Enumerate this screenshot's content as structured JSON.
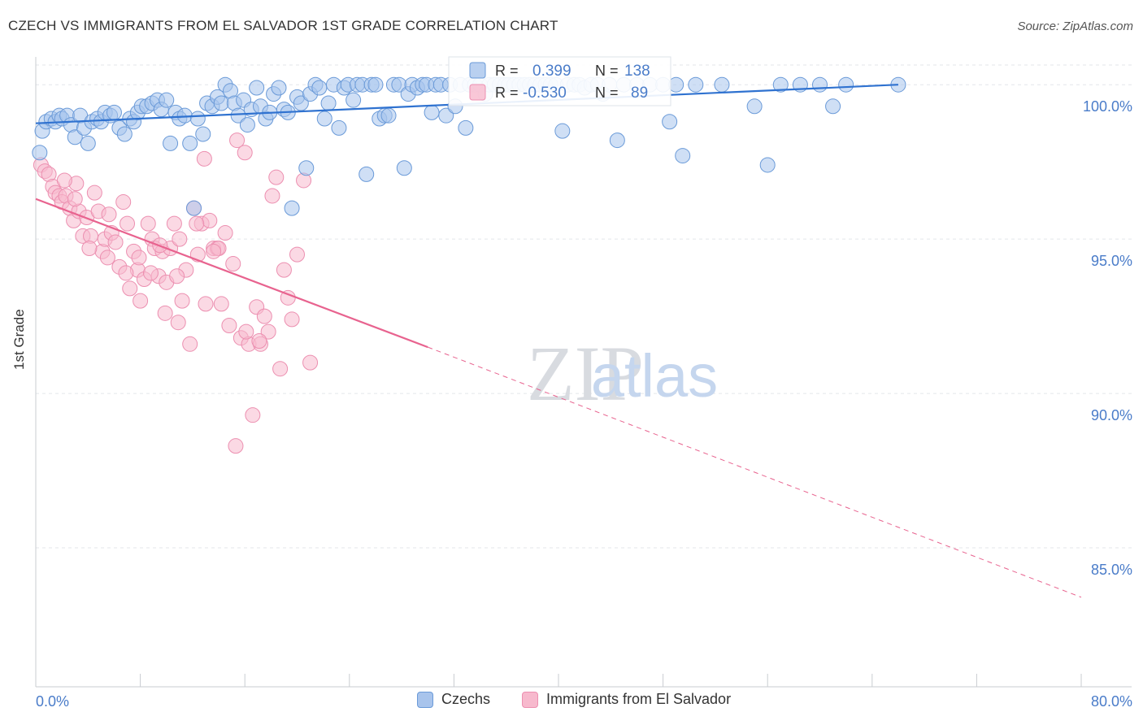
{
  "title": "CZECH VS IMMIGRANTS FROM EL SALVADOR 1ST GRADE CORRELATION CHART",
  "source": "Source: ZipAtlas.com",
  "watermark": {
    "zip": "ZIP",
    "atlas": "atlas"
  },
  "colors": {
    "czech_fill": "#a8c4ec",
    "czech_stroke": "#6a9ad8",
    "czech_line": "#2f72d0",
    "salv_fill": "#f7b9cd",
    "salv_stroke": "#ec8fb0",
    "salv_line": "#e8638f",
    "axis_label": "#4a7cc9"
  },
  "legend_box": {
    "rows": [
      {
        "r_label": "R =",
        "r_value": "0.399",
        "n_label": "N =",
        "n_value": "138"
      },
      {
        "r_label": "R =",
        "r_value": "-0.530",
        "n_label": "N =",
        "n_value": "89"
      }
    ]
  },
  "legend_bottom": {
    "items": [
      "Czechs",
      "Immigrants from El Salvador"
    ]
  },
  "chart_data": {
    "type": "scatter",
    "title": "CZECH VS IMMIGRANTS FROM EL SALVADOR 1ST GRADE CORRELATION CHART",
    "ylabel": "1st Grade",
    "xlim": [
      0,
      80
    ],
    "ylim": [
      80.5,
      100.9
    ],
    "x_tick_labels": [
      "0.0%",
      "80.0%"
    ],
    "y_ticks": [
      85,
      90,
      95,
      100
    ],
    "y_tick_labels": [
      "85.0%",
      "90.0%",
      "95.0%",
      "100.0%"
    ],
    "grid": true,
    "legend_position": "top-center",
    "series": [
      {
        "name": "Czechs",
        "stats": {
          "R": 0.399,
          "N": 138
        },
        "trend": {
          "x0": 0,
          "y0": 98.75,
          "x1": 66,
          "y1": 100.0,
          "dashed_to": null
        },
        "points": [
          [
            0.3,
            97.8
          ],
          [
            0.5,
            98.5
          ],
          [
            0.8,
            98.8
          ],
          [
            1.2,
            98.9
          ],
          [
            1.5,
            98.8
          ],
          [
            1.8,
            99.0
          ],
          [
            2.0,
            98.9
          ],
          [
            2.4,
            99.0
          ],
          [
            2.7,
            98.7
          ],
          [
            3.0,
            98.3
          ],
          [
            3.4,
            99.0
          ],
          [
            3.7,
            98.6
          ],
          [
            4.0,
            98.1
          ],
          [
            4.3,
            98.8
          ],
          [
            4.7,
            98.9
          ],
          [
            5.0,
            98.8
          ],
          [
            5.3,
            99.1
          ],
          [
            5.7,
            99.0
          ],
          [
            6.0,
            99.1
          ],
          [
            6.4,
            98.6
          ],
          [
            6.8,
            98.4
          ],
          [
            7.2,
            98.9
          ],
          [
            7.5,
            98.8
          ],
          [
            7.8,
            99.1
          ],
          [
            8.1,
            99.3
          ],
          [
            8.5,
            99.3
          ],
          [
            8.9,
            99.4
          ],
          [
            9.3,
            99.5
          ],
          [
            9.6,
            99.2
          ],
          [
            10.0,
            99.5
          ],
          [
            10.3,
            98.1
          ],
          [
            10.7,
            99.1
          ],
          [
            11.0,
            98.9
          ],
          [
            11.4,
            99.0
          ],
          [
            11.8,
            98.1
          ],
          [
            12.1,
            96.0
          ],
          [
            12.4,
            98.9
          ],
          [
            12.8,
            98.4
          ],
          [
            13.1,
            99.4
          ],
          [
            13.5,
            99.3
          ],
          [
            13.9,
            99.6
          ],
          [
            14.2,
            99.4
          ],
          [
            14.5,
            100.0
          ],
          [
            14.9,
            99.8
          ],
          [
            15.2,
            99.4
          ],
          [
            15.5,
            99.0
          ],
          [
            15.9,
            99.5
          ],
          [
            16.2,
            98.7
          ],
          [
            16.5,
            99.2
          ],
          [
            16.9,
            99.9
          ],
          [
            17.2,
            99.3
          ],
          [
            17.6,
            98.9
          ],
          [
            17.9,
            99.1
          ],
          [
            18.2,
            99.7
          ],
          [
            18.6,
            99.9
          ],
          [
            19.0,
            99.2
          ],
          [
            19.3,
            99.1
          ],
          [
            19.6,
            96.0
          ],
          [
            20.0,
            99.6
          ],
          [
            20.3,
            99.4
          ],
          [
            20.7,
            97.3
          ],
          [
            21.0,
            99.7
          ],
          [
            21.4,
            100.0
          ],
          [
            21.7,
            99.9
          ],
          [
            22.1,
            98.9
          ],
          [
            22.4,
            99.4
          ],
          [
            22.8,
            100.0
          ],
          [
            23.2,
            98.6
          ],
          [
            23.6,
            99.9
          ],
          [
            23.9,
            100.0
          ],
          [
            24.3,
            99.5
          ],
          [
            24.6,
            100.0
          ],
          [
            25.0,
            100.0
          ],
          [
            25.3,
            97.1
          ],
          [
            25.7,
            100.0
          ],
          [
            26.0,
            100.0
          ],
          [
            26.3,
            98.9
          ],
          [
            26.7,
            99.0
          ],
          [
            27.0,
            99.0
          ],
          [
            27.4,
            100.0
          ],
          [
            27.8,
            100.0
          ],
          [
            28.2,
            97.3
          ],
          [
            28.5,
            99.7
          ],
          [
            28.8,
            100.0
          ],
          [
            29.2,
            99.9
          ],
          [
            29.6,
            100.0
          ],
          [
            29.9,
            100.0
          ],
          [
            30.3,
            99.1
          ],
          [
            30.6,
            100.0
          ],
          [
            31.0,
            100.0
          ],
          [
            31.4,
            99.0
          ],
          [
            31.7,
            100.0
          ],
          [
            32.1,
            99.3
          ],
          [
            32.5,
            100.0
          ],
          [
            32.9,
            98.6
          ],
          [
            33.2,
            100.0
          ],
          [
            33.6,
            100.0
          ],
          [
            34.0,
            100.0
          ],
          [
            34.4,
            99.7
          ],
          [
            34.7,
            100.0
          ],
          [
            35.1,
            100.0
          ],
          [
            35.5,
            100.0
          ],
          [
            35.9,
            100.0
          ],
          [
            36.2,
            100.0
          ],
          [
            36.6,
            100.0
          ],
          [
            37.0,
            100.0
          ],
          [
            37.4,
            100.0
          ],
          [
            37.8,
            100.0
          ],
          [
            38.2,
            100.0
          ],
          [
            38.6,
            100.0
          ],
          [
            39.0,
            100.0
          ],
          [
            39.4,
            100.0
          ],
          [
            39.8,
            100.0
          ],
          [
            40.3,
            98.5
          ],
          [
            40.7,
            100.0
          ],
          [
            41.2,
            100.0
          ],
          [
            41.6,
            100.0
          ],
          [
            42.0,
            99.9
          ],
          [
            42.5,
            100.0
          ],
          [
            43.0,
            100.0
          ],
          [
            43.4,
            99.7
          ],
          [
            43.9,
            100.0
          ],
          [
            44.5,
            98.2
          ],
          [
            45.0,
            100.0
          ],
          [
            46.0,
            100.0
          ],
          [
            47.0,
            100.0
          ],
          [
            48.0,
            100.0
          ],
          [
            48.5,
            98.8
          ],
          [
            49.0,
            100.0
          ],
          [
            49.5,
            97.7
          ],
          [
            50.5,
            100.0
          ],
          [
            52.5,
            100.0
          ],
          [
            55.0,
            99.3
          ],
          [
            56.0,
            97.4
          ],
          [
            57.0,
            100.0
          ],
          [
            58.5,
            100.0
          ],
          [
            60.0,
            100.0
          ],
          [
            61.0,
            99.3
          ],
          [
            62.0,
            100.0
          ],
          [
            66.0,
            100.0
          ]
        ]
      },
      {
        "name": "Immigrants from El Salvador",
        "stats": {
          "R": -0.53,
          "N": 89
        },
        "trend": {
          "x0": 0,
          "y0": 96.3,
          "x1": 30,
          "y1": 91.5,
          "dashed_to": [
            80,
            83.4
          ]
        },
        "points": [
          [
            0.4,
            97.4
          ],
          [
            0.7,
            97.2
          ],
          [
            1.0,
            97.1
          ],
          [
            1.3,
            96.7
          ],
          [
            1.5,
            96.5
          ],
          [
            1.8,
            96.4
          ],
          [
            2.0,
            96.2
          ],
          [
            2.3,
            96.4
          ],
          [
            2.6,
            96.0
          ],
          [
            2.9,
            95.6
          ],
          [
            3.1,
            96.8
          ],
          [
            3.3,
            95.9
          ],
          [
            3.6,
            95.1
          ],
          [
            3.9,
            95.7
          ],
          [
            4.2,
            95.1
          ],
          [
            4.5,
            96.5
          ],
          [
            4.8,
            95.9
          ],
          [
            5.1,
            94.6
          ],
          [
            5.3,
            95.0
          ],
          [
            5.5,
            94.4
          ],
          [
            5.8,
            95.2
          ],
          [
            6.1,
            94.9
          ],
          [
            6.4,
            94.1
          ],
          [
            6.7,
            96.2
          ],
          [
            7.0,
            95.5
          ],
          [
            7.2,
            93.4
          ],
          [
            7.5,
            94.6
          ],
          [
            7.8,
            94.0
          ],
          [
            8.0,
            93.0
          ],
          [
            8.3,
            93.7
          ],
          [
            8.6,
            95.5
          ],
          [
            8.9,
            95.0
          ],
          [
            9.1,
            94.7
          ],
          [
            9.4,
            93.8
          ],
          [
            9.7,
            94.6
          ],
          [
            10.0,
            93.6
          ],
          [
            10.3,
            94.7
          ],
          [
            10.6,
            95.5
          ],
          [
            10.9,
            92.3
          ],
          [
            11.2,
            93.0
          ],
          [
            11.5,
            94.0
          ],
          [
            11.8,
            91.6
          ],
          [
            12.1,
            96.0
          ],
          [
            12.4,
            94.5
          ],
          [
            12.7,
            95.5
          ],
          [
            13.0,
            92.9
          ],
          [
            13.3,
            95.6
          ],
          [
            13.6,
            94.7
          ],
          [
            13.9,
            94.7
          ],
          [
            14.2,
            92.9
          ],
          [
            14.5,
            95.2
          ],
          [
            14.8,
            92.2
          ],
          [
            15.1,
            94.2
          ],
          [
            15.4,
            98.2
          ],
          [
            15.7,
            91.8
          ],
          [
            16.0,
            97.8
          ],
          [
            16.3,
            91.6
          ],
          [
            16.6,
            89.3
          ],
          [
            16.9,
            92.8
          ],
          [
            17.2,
            91.6
          ],
          [
            17.5,
            92.5
          ],
          [
            17.8,
            92.0
          ],
          [
            18.1,
            96.4
          ],
          [
            18.4,
            97.0
          ],
          [
            18.7,
            90.8
          ],
          [
            19.0,
            94.0
          ],
          [
            19.3,
            93.1
          ],
          [
            19.6,
            92.4
          ],
          [
            20.0,
            94.5
          ],
          [
            20.5,
            96.9
          ],
          [
            21.0,
            91.0
          ],
          [
            9.5,
            94.8
          ],
          [
            10.8,
            93.8
          ],
          [
            6.9,
            93.9
          ],
          [
            4.1,
            94.7
          ],
          [
            15.3,
            88.3
          ],
          [
            12.9,
            97.6
          ],
          [
            7.9,
            94.4
          ],
          [
            5.6,
            95.8
          ],
          [
            14.0,
            94.7
          ],
          [
            11.0,
            95.0
          ],
          [
            3.0,
            96.3
          ],
          [
            2.2,
            96.9
          ],
          [
            16.1,
            92.0
          ],
          [
            8.8,
            93.9
          ],
          [
            17.1,
            91.7
          ],
          [
            12.3,
            95.5
          ],
          [
            13.6,
            94.6
          ],
          [
            9.9,
            92.6
          ]
        ]
      }
    ]
  }
}
